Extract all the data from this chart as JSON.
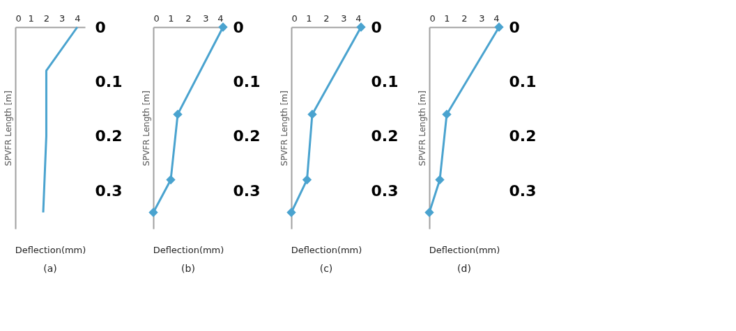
{
  "chart_data": [
    {
      "type": "line",
      "title": "(a)",
      "xlabel": "Deflection(mm)",
      "ylabel": "SPVFR Length [m]",
      "x": [
        4,
        2,
        2,
        1.8
      ],
      "series": [
        {
          "color": "#4aa3cf",
          "values": [
            0,
            0.08,
            0.2,
            0.34
          ]
        }
      ],
      "xlim": [
        0,
        4.5
      ],
      "xticks": [
        0,
        1,
        2,
        3,
        4
      ],
      "ylim": [
        0.37,
        0
      ],
      "yticks": [
        0,
        0.1,
        0.2,
        0.3
      ],
      "grid": false,
      "marker": "none"
    },
    {
      "type": "line",
      "title": "(b)",
      "xlabel": "Deflection(mm)",
      "ylabel": "SPVFR Length [m]",
      "x": [
        4,
        1.4,
        1,
        0
      ],
      "series": [
        {
          "color": "#4aa3cf",
          "values": [
            0,
            0.16,
            0.28,
            0.34
          ]
        }
      ],
      "xlim": [
        0,
        4
      ],
      "xticks": [
        0,
        1,
        2,
        3,
        4
      ],
      "ylim": [
        0.37,
        0
      ],
      "yticks": [
        0,
        0.1,
        0.2,
        0.3
      ],
      "grid": false,
      "marker": "diamond"
    },
    {
      "type": "line",
      "title": "(c)",
      "xlabel": "Deflection(mm)",
      "ylabel": "SPVFR Length [m]",
      "x": [
        4,
        1.2,
        0.9,
        0
      ],
      "series": [
        {
          "color": "#4aa3cf",
          "values": [
            0,
            0.16,
            0.28,
            0.34
          ]
        }
      ],
      "xlim": [
        0,
        4
      ],
      "xticks": [
        0,
        1,
        2,
        3,
        4
      ],
      "ylim": [
        0.37,
        0
      ],
      "yticks": [
        0,
        0.1,
        0.2,
        0.3
      ],
      "grid": false,
      "marker": "diamond"
    },
    {
      "type": "line",
      "title": "(d)",
      "xlabel": "Deflection(mm)",
      "ylabel": "SPVFR Length [m]",
      "x": [
        4,
        1,
        0.6,
        0
      ],
      "series": [
        {
          "color": "#4aa3cf",
          "values": [
            0,
            0.16,
            0.28,
            0.34
          ]
        }
      ],
      "xlim": [
        0,
        4
      ],
      "xticks": [
        0,
        1,
        2,
        3,
        4
      ],
      "ylim": [
        0.37,
        0
      ],
      "yticks": [
        0,
        0.1,
        0.2,
        0.3
      ],
      "grid": false,
      "marker": "diamond"
    }
  ]
}
